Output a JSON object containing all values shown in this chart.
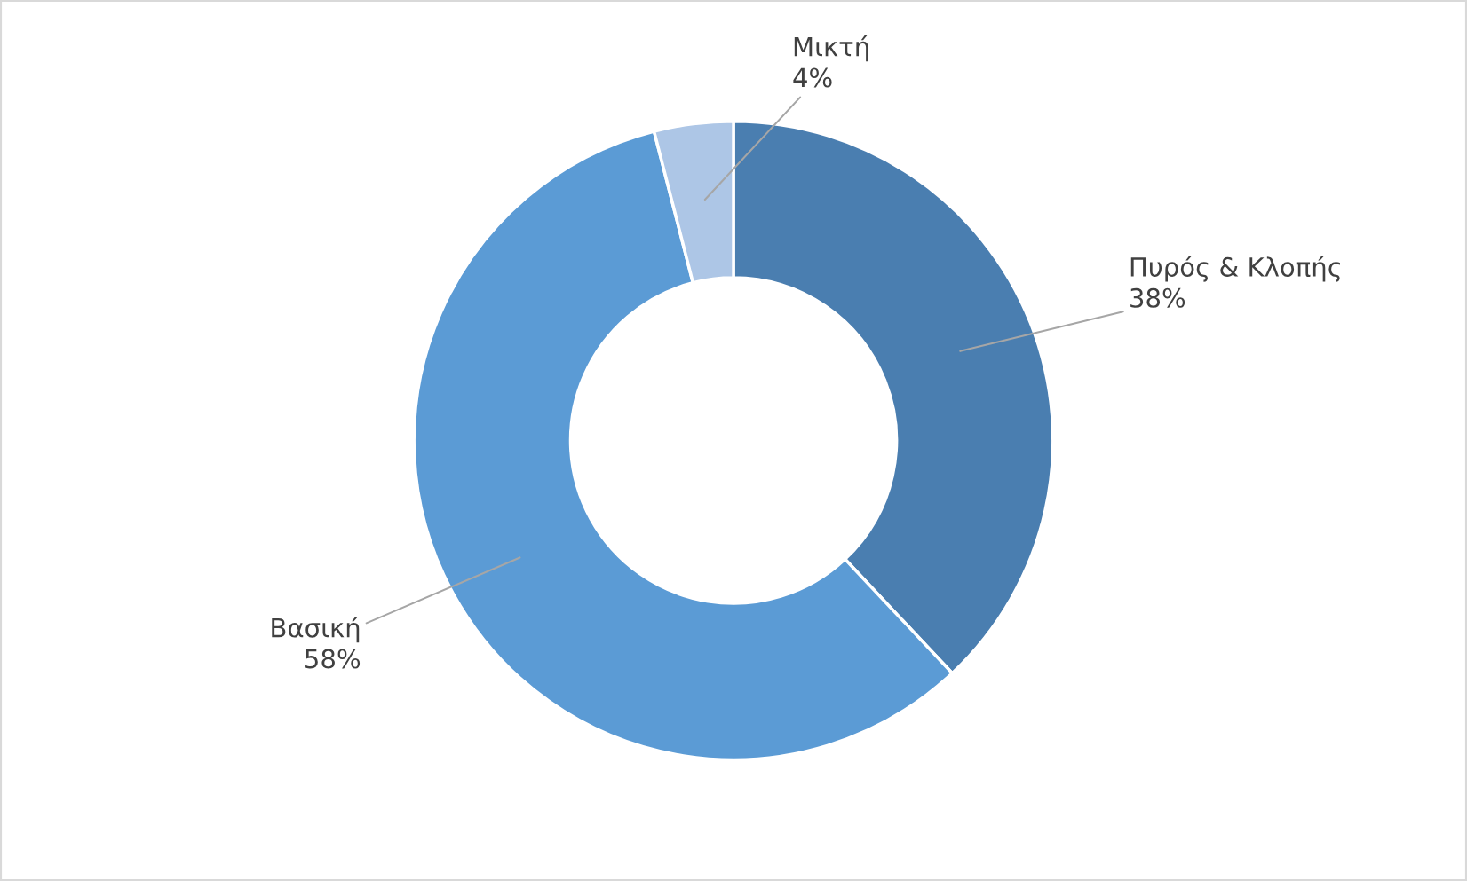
{
  "chart_data": {
    "type": "donut",
    "categories": [
      "Πυρός & Κλοπής",
      "Βασική",
      "Μικτή"
    ],
    "values": [
      38,
      58,
      4
    ],
    "value_labels": [
      "38%",
      "58%",
      "4%"
    ],
    "colors": [
      "#4a7eb0",
      "#5b9bd5",
      "#adc6e6"
    ]
  }
}
